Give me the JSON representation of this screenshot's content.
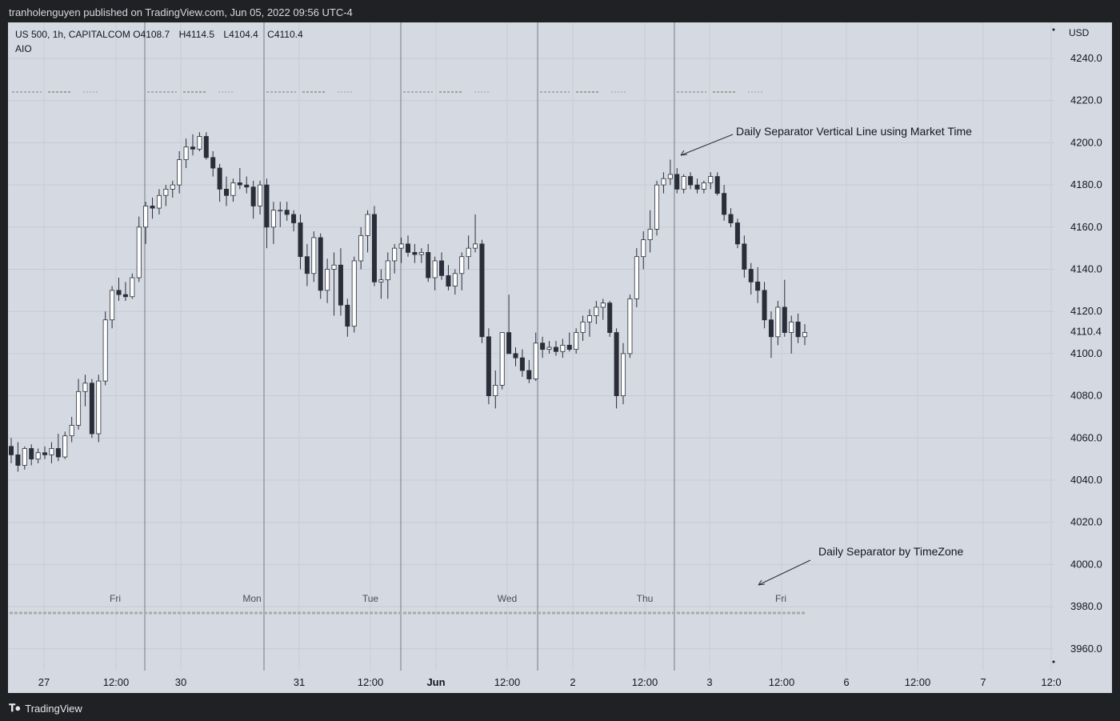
{
  "header": {
    "publisher_text": "tranholenguyen published on TradingView.com, Jun 05, 2022 09:56 UTC-4"
  },
  "legend": {
    "symbol": "US 500, 1h, CAPITALCOM",
    "open_label": "O",
    "open": "4108.7",
    "high_label": "H",
    "high": "4114.5",
    "low_label": "L",
    "low": "4104.4",
    "close_label": "C",
    "close": "4110.4",
    "indicator": "AIO"
  },
  "footer": {
    "brand": "TradingView",
    "brand_icon": "tradingview-logo-icon"
  },
  "colors": {
    "background": "#d5d9e2",
    "up_candle": "#ffffff",
    "down_candle": "#2a2e39",
    "separator": "#787b86",
    "text": "#131722"
  },
  "chart_data": {
    "type": "candlestick",
    "currency": "USD",
    "ylim": [
      3950,
      4250
    ],
    "y_ticks": [
      "4240.0",
      "4220.0",
      "4200.0",
      "4180.0",
      "4160.0",
      "4140.0",
      "4120.0",
      "4100.0",
      "4080.0",
      "4060.0",
      "4040.0",
      "4020.0",
      "4000.0",
      "3980.0",
      "3960.0"
    ],
    "last_price": "4110.4",
    "x_ticks": [
      "27",
      "12:00",
      "30",
      "31",
      "12:00",
      "Jun",
      "12:00",
      "2",
      "12:00",
      "3",
      "12:00",
      "6",
      "12:00",
      "7",
      "12:0"
    ],
    "day_labels": [
      "Fri",
      "Mon",
      "Tue",
      "Wed",
      "Thu",
      "Fri"
    ],
    "annotations": [
      {
        "text": "Daily Separator Vertical Line using Market Time"
      },
      {
        "text": "Daily Separator by TimeZone"
      }
    ],
    "candles": [
      [
        4056,
        4060,
        4048,
        4052
      ],
      [
        4052,
        4058,
        4044,
        4047
      ],
      [
        4047,
        4056,
        4045,
        4055
      ],
      [
        4055,
        4057,
        4047,
        4050
      ],
      [
        4050,
        4055,
        4048,
        4053
      ],
      [
        4053,
        4056,
        4050,
        4052
      ],
      [
        4052,
        4058,
        4048,
        4055
      ],
      [
        4055,
        4062,
        4049,
        4051
      ],
      [
        4051,
        4063,
        4050,
        4061
      ],
      [
        4061,
        4070,
        4058,
        4066
      ],
      [
        4066,
        4088,
        4064,
        4082
      ],
      [
        4082,
        4090,
        4075,
        4086
      ],
      [
        4086,
        4088,
        4060,
        4062
      ],
      [
        4062,
        4090,
        4058,
        4087
      ],
      [
        4087,
        4120,
        4085,
        4116
      ],
      [
        4116,
        4132,
        4112,
        4130
      ],
      [
        4130,
        4136,
        4125,
        4128
      ],
      [
        4128,
        4134,
        4125,
        4127
      ],
      [
        4127,
        4138,
        4126,
        4136
      ],
      [
        4136,
        4165,
        4134,
        4160
      ],
      [
        4160,
        4172,
        4152,
        4170
      ],
      [
        4170,
        4174,
        4164,
        4169
      ],
      [
        4169,
        4178,
        4166,
        4175
      ],
      [
        4175,
        4180,
        4170,
        4178
      ],
      [
        4178,
        4182,
        4174,
        4180
      ],
      [
        4180,
        4196,
        4176,
        4192
      ],
      [
        4192,
        4202,
        4188,
        4198
      ],
      [
        4198,
        4204,
        4194,
        4197
      ],
      [
        4197,
        4205,
        4196,
        4203
      ],
      [
        4203,
        4205,
        4192,
        4193
      ],
      [
        4193,
        4196,
        4184,
        4188
      ],
      [
        4188,
        4190,
        4172,
        4178
      ],
      [
        4178,
        4184,
        4170,
        4175
      ],
      [
        4175,
        4183,
        4172,
        4181
      ],
      [
        4181,
        4188,
        4178,
        4180
      ],
      [
        4180,
        4184,
        4176,
        4179
      ],
      [
        4179,
        4182,
        4164,
        4170
      ],
      [
        4170,
        4182,
        4166,
        4180
      ],
      [
        4180,
        4183,
        4150,
        4160
      ],
      [
        4160,
        4172,
        4152,
        4168
      ],
      [
        4168,
        4172,
        4160,
        4168
      ],
      [
        4168,
        4172,
        4163,
        4166
      ],
      [
        4166,
        4168,
        4158,
        4162
      ],
      [
        4162,
        4166,
        4140,
        4146
      ],
      [
        4146,
        4152,
        4132,
        4138
      ],
      [
        4138,
        4158,
        4134,
        4155
      ],
      [
        4155,
        4157,
        4126,
        4130
      ],
      [
        4130,
        4145,
        4124,
        4140
      ],
      [
        4140,
        4148,
        4118,
        4142
      ],
      [
        4142,
        4150,
        4118,
        4123
      ],
      [
        4123,
        4126,
        4108,
        4113
      ],
      [
        4113,
        4146,
        4110,
        4144
      ],
      [
        4144,
        4160,
        4140,
        4156
      ],
      [
        4156,
        4168,
        4148,
        4166
      ],
      [
        4166,
        4170,
        4132,
        4134
      ],
      [
        4134,
        4140,
        4126,
        4135
      ],
      [
        4135,
        4148,
        4126,
        4144
      ],
      [
        4144,
        4152,
        4138,
        4150
      ],
      [
        4150,
        4155,
        4143,
        4152
      ],
      [
        4152,
        4156,
        4146,
        4148
      ],
      [
        4148,
        4152,
        4143,
        4147
      ],
      [
        4147,
        4150,
        4143,
        4148
      ],
      [
        4148,
        4152,
        4134,
        4136
      ],
      [
        4136,
        4146,
        4130,
        4144
      ],
      [
        4144,
        4148,
        4135,
        4137
      ],
      [
        4137,
        4142,
        4130,
        4132
      ],
      [
        4132,
        4140,
        4128,
        4138
      ],
      [
        4138,
        4148,
        4130,
        4146
      ],
      [
        4146,
        4156,
        4140,
        4150
      ],
      [
        4150,
        4166,
        4148,
        4152
      ],
      [
        4152,
        4154,
        4105,
        4108
      ],
      [
        4108,
        4112,
        4076,
        4080
      ],
      [
        4080,
        4092,
        4074,
        4085
      ],
      [
        4085,
        4110,
        4083,
        4110
      ],
      [
        4110,
        4128,
        4100,
        4100
      ],
      [
        4100,
        4103,
        4094,
        4098
      ],
      [
        4098,
        4102,
        4089,
        4092
      ],
      [
        4092,
        4097,
        4086,
        4088
      ],
      [
        4088,
        4110,
        4087,
        4105
      ],
      [
        4105,
        4108,
        4098,
        4102
      ],
      [
        4102,
        4106,
        4100,
        4103
      ],
      [
        4103,
        4106,
        4099,
        4101
      ],
      [
        4101,
        4107,
        4098,
        4104
      ],
      [
        4104,
        4110,
        4101,
        4102
      ],
      [
        4102,
        4112,
        4100,
        4110
      ],
      [
        4110,
        4118,
        4106,
        4115
      ],
      [
        4115,
        4121,
        4108,
        4118
      ],
      [
        4118,
        4125,
        4114,
        4122
      ],
      [
        4122,
        4126,
        4116,
        4124
      ],
      [
        4124,
        4125,
        4108,
        4110
      ],
      [
        4110,
        4112,
        4074,
        4080
      ],
      [
        4080,
        4105,
        4076,
        4100
      ],
      [
        4100,
        4128,
        4098,
        4126
      ],
      [
        4126,
        4150,
        4122,
        4146
      ],
      [
        4146,
        4158,
        4140,
        4154
      ],
      [
        4154,
        4168,
        4148,
        4159
      ],
      [
        4159,
        4182,
        4156,
        4180
      ],
      [
        4180,
        4186,
        4176,
        4183
      ],
      [
        4183,
        4192,
        4180,
        4185
      ],
      [
        4185,
        4188,
        4176,
        4178
      ],
      [
        4178,
        4185,
        4176,
        4184
      ],
      [
        4184,
        4186,
        4178,
        4180
      ],
      [
        4180,
        4183,
        4176,
        4178
      ],
      [
        4178,
        4182,
        4176,
        4181
      ],
      [
        4181,
        4186,
        4178,
        4184
      ],
      [
        4184,
        4186,
        4175,
        4176
      ],
      [
        4176,
        4180,
        4163,
        4166
      ],
      [
        4166,
        4169,
        4160,
        4162
      ],
      [
        4162,
        4164,
        4150,
        4152
      ],
      [
        4152,
        4156,
        4136,
        4140
      ],
      [
        4140,
        4143,
        4128,
        4134
      ],
      [
        4134,
        4141,
        4124,
        4130
      ],
      [
        4130,
        4134,
        4112,
        4116
      ],
      [
        4116,
        4120,
        4098,
        4108
      ],
      [
        4108,
        4125,
        4104,
        4122
      ],
      [
        4122,
        4135,
        4108,
        4110
      ],
      [
        4110,
        4118,
        4100,
        4115
      ],
      [
        4115,
        4119,
        4105,
        4108
      ],
      [
        4108,
        4114,
        4104,
        4110
      ]
    ]
  }
}
